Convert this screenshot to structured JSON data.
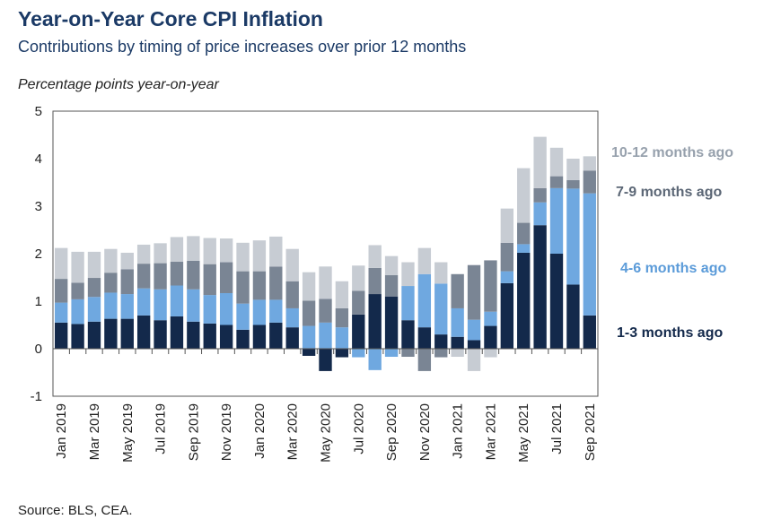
{
  "header": {
    "title": "Year-on-Year Core CPI Inflation",
    "subtitle": "Contributions by timing of price increases over prior 12 months"
  },
  "footer": {
    "source": "Source: BLS, CEA."
  },
  "chart_data": {
    "type": "bar",
    "stacked": true,
    "title": "Year-on-Year Core CPI Inflation",
    "subtitle": "Contributions by timing of price increases over prior 12 months",
    "ylabel": "Percentage points year-on-year",
    "xlabel": "",
    "ylim": [
      -1,
      5
    ],
    "yticks": [
      -1,
      0,
      1,
      2,
      3,
      4,
      5
    ],
    "legend_placement": "right",
    "categories": [
      "Jan 2019",
      "Feb 2019",
      "Mar 2019",
      "Apr 2019",
      "May 2019",
      "Jun 2019",
      "Jul 2019",
      "Aug 2019",
      "Sep 2019",
      "Oct 2019",
      "Nov 2019",
      "Dec 2019",
      "Jan 2020",
      "Feb 2020",
      "Mar 2020",
      "Apr 2020",
      "May 2020",
      "Jun 2020",
      "Jul 2020",
      "Aug 2020",
      "Sep 2020",
      "Oct 2020",
      "Nov 2020",
      "Dec 2020",
      "Jan 2021",
      "Feb 2021",
      "Mar 2021",
      "Apr 2021",
      "May 2021",
      "Jun 2021",
      "Jul 2021",
      "Aug 2021",
      "Sep 2021"
    ],
    "tick_labels": [
      "Jan 2019",
      "Mar 2019",
      "May 2019",
      "Jul 2019",
      "Sep 2019",
      "Nov 2019",
      "Jan 2020",
      "Mar 2020",
      "May 2020",
      "Jul 2020",
      "Sep 2020",
      "Nov 2020",
      "Jan 2021",
      "Mar 2021",
      "May 2021",
      "Jul 2021",
      "Sep 2021"
    ],
    "series": [
      {
        "name": "1-3 months ago",
        "color": "#13294b",
        "values": [
          0.55,
          0.52,
          0.57,
          0.63,
          0.63,
          0.7,
          0.6,
          0.68,
          0.57,
          0.53,
          0.5,
          0.4,
          0.5,
          0.55,
          0.45,
          -0.15,
          -0.47,
          -0.18,
          0.72,
          1.15,
          1.1,
          0.6,
          0.45,
          0.3,
          0.25,
          0.18,
          0.48,
          1.38,
          2.02,
          2.6,
          2.0,
          1.35,
          0.7
        ]
      },
      {
        "name": "4-6 months ago",
        "color": "#6fa8e0",
        "values": [
          0.42,
          0.52,
          0.52,
          0.55,
          0.52,
          0.57,
          0.65,
          0.65,
          0.68,
          0.6,
          0.67,
          0.55,
          0.53,
          0.48,
          0.4,
          0.48,
          0.55,
          0.45,
          -0.18,
          -0.45,
          -0.17,
          0.72,
          1.12,
          1.07,
          0.6,
          0.43,
          0.3,
          0.25,
          0.18,
          0.48,
          1.38,
          2.02,
          2.57
        ]
      },
      {
        "name": "7-9 months ago",
        "color": "#7a8594",
        "values": [
          0.5,
          0.35,
          0.4,
          0.42,
          0.52,
          0.52,
          0.55,
          0.5,
          0.6,
          0.65,
          0.65,
          0.68,
          0.6,
          0.7,
          0.57,
          0.53,
          0.5,
          0.4,
          0.5,
          0.55,
          0.45,
          -0.17,
          -0.47,
          -0.18,
          0.72,
          1.15,
          1.08,
          0.6,
          0.45,
          0.3,
          0.25,
          0.18,
          0.48
        ]
      },
      {
        "name": "10-12 months ago",
        "color": "#c7ccd3",
        "values": [
          0.65,
          0.65,
          0.55,
          0.5,
          0.35,
          0.4,
          0.42,
          0.52,
          0.52,
          0.55,
          0.5,
          0.6,
          0.65,
          0.63,
          0.68,
          0.6,
          0.68,
          0.57,
          0.53,
          0.48,
          0.4,
          0.5,
          0.55,
          0.45,
          -0.17,
          -0.47,
          -0.18,
          0.72,
          1.15,
          1.08,
          0.6,
          0.45,
          0.3
        ]
      }
    ]
  }
}
